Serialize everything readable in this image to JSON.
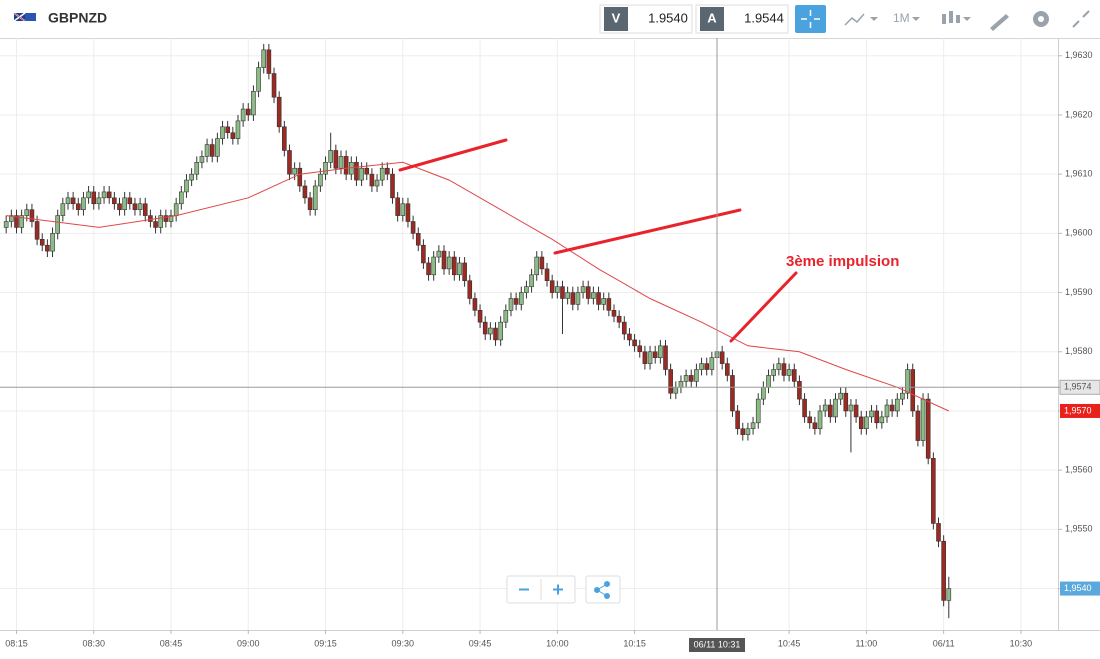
{
  "toolbar": {
    "symbol": "GBPNZD",
    "sell_label": "V",
    "sell_price": "1.9540",
    "buy_label": "A",
    "buy_price": "1.9544",
    "timeframe": "1M"
  },
  "chart_data": {
    "type": "candlestick",
    "x": [
      493,
      494,
      495,
      496,
      497,
      498,
      499,
      500,
      501,
      502,
      503,
      504,
      505,
      506,
      507,
      508,
      509,
      510,
      511,
      512,
      513,
      514,
      515,
      516,
      517,
      518,
      519,
      520,
      521,
      522,
      523,
      524,
      525,
      526,
      527,
      528,
      529,
      530,
      531,
      532,
      533,
      534,
      535,
      536,
      537,
      538,
      539,
      540,
      541,
      542,
      543,
      544,
      545,
      546,
      547,
      548,
      549,
      550,
      551,
      552,
      553,
      554,
      555,
      556,
      557,
      558,
      559,
      560,
      561,
      562,
      563,
      564,
      565,
      566,
      567,
      568,
      569,
      570,
      571,
      572,
      573,
      574,
      575,
      576,
      577,
      578,
      579,
      580,
      581,
      582,
      583,
      584,
      585,
      586,
      587,
      588,
      589,
      590,
      591,
      592,
      593,
      594,
      595,
      596,
      597,
      598,
      599,
      600,
      601,
      602,
      603,
      604,
      605,
      606,
      607,
      608,
      609,
      610,
      611,
      612,
      613,
      614,
      615,
      616,
      617,
      618,
      619,
      620,
      621,
      622,
      623,
      624,
      625,
      626,
      627,
      628,
      629,
      630,
      631,
      632,
      633,
      634,
      635,
      636,
      637,
      638,
      639,
      640,
      641,
      642,
      643,
      644,
      645,
      646,
      647,
      648,
      649,
      650,
      651,
      652,
      653,
      654,
      655,
      656,
      657,
      658,
      659,
      660,
      661,
      662,
      663,
      664,
      665,
      666,
      667,
      668,
      669,
      670,
      671,
      672,
      673,
      674,
      675,
      676
    ],
    "candles": [
      [
        1.9601,
        1.9603,
        1.96,
        1.9602
      ],
      [
        1.9602,
        1.9604,
        1.9601,
        1.9603
      ],
      [
        1.9603,
        1.9604,
        1.96,
        1.9601
      ],
      [
        1.9601,
        1.9604,
        1.96,
        1.9603
      ],
      [
        1.9603,
        1.9605,
        1.9602,
        1.9604
      ],
      [
        1.9604,
        1.9605,
        1.9601,
        1.9602
      ],
      [
        1.9602,
        1.9603,
        1.9598,
        1.9599
      ],
      [
        1.9599,
        1.96,
        1.9597,
        1.9598
      ],
      [
        1.9598,
        1.9599,
        1.9596,
        1.9597
      ],
      [
        1.9597,
        1.9601,
        1.9596,
        1.96
      ],
      [
        1.96,
        1.9604,
        1.9599,
        1.9603
      ],
      [
        1.9603,
        1.9606,
        1.9602,
        1.9605
      ],
      [
        1.9605,
        1.9607,
        1.9604,
        1.9606
      ],
      [
        1.9606,
        1.9607,
        1.9604,
        1.9605
      ],
      [
        1.9605,
        1.9606,
        1.9603,
        1.9604
      ],
      [
        1.9604,
        1.9607,
        1.9603,
        1.9606
      ],
      [
        1.9606,
        1.9608,
        1.9605,
        1.9607
      ],
      [
        1.9607,
        1.9608,
        1.9604,
        1.9605
      ],
      [
        1.9605,
        1.9607,
        1.9604,
        1.9606
      ],
      [
        1.9606,
        1.9608,
        1.9605,
        1.9607
      ],
      [
        1.9607,
        1.9608,
        1.9605,
        1.9606
      ],
      [
        1.9606,
        1.9607,
        1.9604,
        1.9605
      ],
      [
        1.9605,
        1.9606,
        1.9603,
        1.9604
      ],
      [
        1.9604,
        1.9607,
        1.9603,
        1.9606
      ],
      [
        1.9606,
        1.9607,
        1.9604,
        1.9605
      ],
      [
        1.9605,
        1.9606,
        1.9603,
        1.9604
      ],
      [
        1.9604,
        1.9606,
        1.9603,
        1.9605
      ],
      [
        1.9605,
        1.9606,
        1.9602,
        1.9603
      ],
      [
        1.9603,
        1.9604,
        1.9601,
        1.9602
      ],
      [
        1.9602,
        1.9603,
        1.96,
        1.9601
      ],
      [
        1.9601,
        1.9604,
        1.96,
        1.9603
      ],
      [
        1.9603,
        1.9604,
        1.9601,
        1.9602
      ],
      [
        1.9602,
        1.9604,
        1.9601,
        1.9603
      ],
      [
        1.9603,
        1.9606,
        1.9602,
        1.9605
      ],
      [
        1.9605,
        1.9608,
        1.9604,
        1.9607
      ],
      [
        1.9607,
        1.961,
        1.9606,
        1.9609
      ],
      [
        1.9609,
        1.9611,
        1.9608,
        1.961
      ],
      [
        1.961,
        1.9613,
        1.9609,
        1.9612
      ],
      [
        1.9612,
        1.9614,
        1.9611,
        1.9613
      ],
      [
        1.9613,
        1.9616,
        1.9612,
        1.9615
      ],
      [
        1.9615,
        1.9616,
        1.9612,
        1.9613
      ],
      [
        1.9613,
        1.9617,
        1.9612,
        1.9616
      ],
      [
        1.9616,
        1.9619,
        1.9615,
        1.9618
      ],
      [
        1.9618,
        1.9619,
        1.9616,
        1.9617
      ],
      [
        1.9617,
        1.9618,
        1.9615,
        1.9616
      ],
      [
        1.9616,
        1.962,
        1.9615,
        1.9619
      ],
      [
        1.9619,
        1.9622,
        1.9618,
        1.9621
      ],
      [
        1.9621,
        1.9622,
        1.9619,
        1.962
      ],
      [
        1.962,
        1.9625,
        1.9619,
        1.9624
      ],
      [
        1.9624,
        1.9629,
        1.9623,
        1.9628
      ],
      [
        1.9628,
        1.9632,
        1.9627,
        1.9631
      ],
      [
        1.9631,
        1.9632,
        1.9626,
        1.9627
      ],
      [
        1.9627,
        1.9628,
        1.9622,
        1.9623
      ],
      [
        1.9623,
        1.9624,
        1.9617,
        1.9618
      ],
      [
        1.9618,
        1.9619,
        1.9613,
        1.9614
      ],
      [
        1.9614,
        1.9615,
        1.9609,
        1.961
      ],
      [
        1.961,
        1.9612,
        1.9609,
        1.9611
      ],
      [
        1.9611,
        1.9612,
        1.9607,
        1.9608
      ],
      [
        1.9608,
        1.9609,
        1.9605,
        1.9606
      ],
      [
        1.9606,
        1.9607,
        1.9603,
        1.9604
      ],
      [
        1.9604,
        1.9609,
        1.9603,
        1.9608
      ],
      [
        1.9608,
        1.9611,
        1.9607,
        1.961
      ],
      [
        1.961,
        1.9613,
        1.9609,
        1.9612
      ],
      [
        1.9612,
        1.9617,
        1.9611,
        1.9614
      ],
      [
        1.9614,
        1.9615,
        1.961,
        1.9611
      ],
      [
        1.9611,
        1.9614,
        1.961,
        1.9613
      ],
      [
        1.9613,
        1.9614,
        1.9609,
        1.961
      ],
      [
        1.961,
        1.9613,
        1.9609,
        1.9612
      ],
      [
        1.9612,
        1.9613,
        1.9608,
        1.9609
      ],
      [
        1.9609,
        1.9612,
        1.9608,
        1.9611
      ],
      [
        1.9611,
        1.9612,
        1.9609,
        1.961
      ],
      [
        1.961,
        1.9611,
        1.9607,
        1.9608
      ],
      [
        1.9608,
        1.961,
        1.9607,
        1.9609
      ],
      [
        1.9609,
        1.9612,
        1.9608,
        1.9611
      ],
      [
        1.9611,
        1.9612,
        1.9609,
        1.961
      ],
      [
        1.961,
        1.9611,
        1.9605,
        1.9606
      ],
      [
        1.9606,
        1.9607,
        1.9602,
        1.9603
      ],
      [
        1.9603,
        1.9606,
        1.9602,
        1.9605
      ],
      [
        1.9605,
        1.9606,
        1.9601,
        1.9602
      ],
      [
        1.9602,
        1.9603,
        1.9599,
        1.96
      ],
      [
        1.96,
        1.9601,
        1.9597,
        1.9598
      ],
      [
        1.9598,
        1.9599,
        1.9594,
        1.9595
      ],
      [
        1.9595,
        1.9596,
        1.9592,
        1.9593
      ],
      [
        1.9593,
        1.9597,
        1.9592,
        1.9596
      ],
      [
        1.9596,
        1.9598,
        1.9595,
        1.9597
      ],
      [
        1.9597,
        1.9598,
        1.9593,
        1.9594
      ],
      [
        1.9594,
        1.9597,
        1.9593,
        1.9596
      ],
      [
        1.9596,
        1.9597,
        1.9592,
        1.9593
      ],
      [
        1.9593,
        1.9596,
        1.9592,
        1.9595
      ],
      [
        1.9595,
        1.9596,
        1.9591,
        1.9592
      ],
      [
        1.9592,
        1.9593,
        1.9588,
        1.9589
      ],
      [
        1.9589,
        1.959,
        1.9586,
        1.9587
      ],
      [
        1.9587,
        1.9588,
        1.9584,
        1.9585
      ],
      [
        1.9585,
        1.9586,
        1.9582,
        1.9583
      ],
      [
        1.9583,
        1.9585,
        1.9582,
        1.9584
      ],
      [
        1.9584,
        1.9585,
        1.9581,
        1.9582
      ],
      [
        1.9582,
        1.9586,
        1.9581,
        1.9585
      ],
      [
        1.9585,
        1.9588,
        1.9584,
        1.9587
      ],
      [
        1.9587,
        1.959,
        1.9586,
        1.9589
      ],
      [
        1.9589,
        1.959,
        1.9587,
        1.9588
      ],
      [
        1.9588,
        1.9591,
        1.9587,
        1.959
      ],
      [
        1.959,
        1.9592,
        1.9589,
        1.9591
      ],
      [
        1.9591,
        1.9594,
        1.959,
        1.9593
      ],
      [
        1.9593,
        1.9597,
        1.9592,
        1.9596
      ],
      [
        1.9596,
        1.9597,
        1.9593,
        1.9594
      ],
      [
        1.9594,
        1.9595,
        1.9591,
        1.9592
      ],
      [
        1.9592,
        1.9593,
        1.9589,
        1.959
      ],
      [
        1.959,
        1.9592,
        1.9589,
        1.9591
      ],
      [
        1.9591,
        1.9592,
        1.9583,
        1.9589
      ],
      [
        1.9589,
        1.9591,
        1.9588,
        1.959
      ],
      [
        1.959,
        1.9591,
        1.9587,
        1.9588
      ],
      [
        1.9588,
        1.9591,
        1.9587,
        1.959
      ],
      [
        1.959,
        1.9592,
        1.9589,
        1.9591
      ],
      [
        1.9591,
        1.9592,
        1.9588,
        1.9589
      ],
      [
        1.9589,
        1.9591,
        1.9588,
        1.959
      ],
      [
        1.959,
        1.9591,
        1.9587,
        1.9588
      ],
      [
        1.9588,
        1.959,
        1.9587,
        1.9589
      ],
      [
        1.9589,
        1.959,
        1.9586,
        1.9587
      ],
      [
        1.9587,
        1.9588,
        1.9585,
        1.9586
      ],
      [
        1.9586,
        1.9587,
        1.9584,
        1.9585
      ],
      [
        1.9585,
        1.9586,
        1.9582,
        1.9583
      ],
      [
        1.9583,
        1.9584,
        1.9581,
        1.9582
      ],
      [
        1.9582,
        1.9583,
        1.958,
        1.9581
      ],
      [
        1.9581,
        1.9582,
        1.9579,
        1.958
      ],
      [
        1.958,
        1.9581,
        1.9577,
        1.9578
      ],
      [
        1.9578,
        1.9581,
        1.9577,
        1.958
      ],
      [
        1.958,
        1.9581,
        1.9578,
        1.9579
      ],
      [
        1.9579,
        1.9582,
        1.9578,
        1.9581
      ],
      [
        1.9581,
        1.9582,
        1.9576,
        1.9577
      ],
      [
        1.9577,
        1.9578,
        1.9572,
        1.9573
      ],
      [
        1.9573,
        1.9575,
        1.9572,
        1.9574
      ],
      [
        1.9574,
        1.9576,
        1.9573,
        1.9575
      ],
      [
        1.9575,
        1.9577,
        1.9574,
        1.9576
      ],
      [
        1.9576,
        1.9577,
        1.9574,
        1.9575
      ],
      [
        1.9575,
        1.9578,
        1.9574,
        1.9577
      ],
      [
        1.9577,
        1.9579,
        1.9576,
        1.9578
      ],
      [
        1.9578,
        1.9579,
        1.9576,
        1.9577
      ],
      [
        1.9577,
        1.958,
        1.9576,
        1.9579
      ],
      [
        1.9579,
        1.9581,
        1.9578,
        1.958
      ],
      [
        1.958,
        1.9581,
        1.9577,
        1.9578
      ],
      [
        1.9578,
        1.9579,
        1.9575,
        1.9576
      ],
      [
        1.9576,
        1.9577,
        1.9569,
        1.957
      ],
      [
        1.957,
        1.9571,
        1.9566,
        1.9567
      ],
      [
        1.9567,
        1.9568,
        1.9565,
        1.9566
      ],
      [
        1.9566,
        1.9568,
        1.9565,
        1.9567
      ],
      [
        1.9567,
        1.9569,
        1.9566,
        1.9568
      ],
      [
        1.9568,
        1.9573,
        1.9567,
        1.9572
      ],
      [
        1.9572,
        1.9575,
        1.9571,
        1.9574
      ],
      [
        1.9574,
        1.9577,
        1.9573,
        1.9576
      ],
      [
        1.9576,
        1.9578,
        1.9575,
        1.9577
      ],
      [
        1.9577,
        1.9579,
        1.9576,
        1.9578
      ],
      [
        1.9578,
        1.9579,
        1.9575,
        1.9576
      ],
      [
        1.9576,
        1.9578,
        1.9575,
        1.9577
      ],
      [
        1.9577,
        1.9578,
        1.9574,
        1.9575
      ],
      [
        1.9575,
        1.9576,
        1.9571,
        1.9572
      ],
      [
        1.9572,
        1.9573,
        1.9568,
        1.9569
      ],
      [
        1.9569,
        1.957,
        1.9567,
        1.9568
      ],
      [
        1.9568,
        1.9569,
        1.9566,
        1.9567
      ],
      [
        1.9567,
        1.9571,
        1.9566,
        1.957
      ],
      [
        1.957,
        1.9572,
        1.9569,
        1.9571
      ],
      [
        1.9571,
        1.9572,
        1.9568,
        1.9569
      ],
      [
        1.9569,
        1.9573,
        1.9568,
        1.9572
      ],
      [
        1.9572,
        1.9574,
        1.9571,
        1.9573
      ],
      [
        1.9573,
        1.9574,
        1.9569,
        1.957
      ],
      [
        1.957,
        1.9572,
        1.9563,
        1.9571
      ],
      [
        1.9571,
        1.9572,
        1.9568,
        1.9569
      ],
      [
        1.9569,
        1.957,
        1.9566,
        1.9567
      ],
      [
        1.9567,
        1.957,
        1.9566,
        1.9569
      ],
      [
        1.9569,
        1.9571,
        1.9568,
        1.957
      ],
      [
        1.957,
        1.9571,
        1.9567,
        1.9568
      ],
      [
        1.9568,
        1.957,
        1.9567,
        1.9569
      ],
      [
        1.9569,
        1.9572,
        1.9568,
        1.9571
      ],
      [
        1.9571,
        1.9572,
        1.9569,
        1.957
      ],
      [
        1.957,
        1.9573,
        1.9569,
        1.9572
      ],
      [
        1.9572,
        1.9574,
        1.9571,
        1.9573
      ],
      [
        1.9573,
        1.9578,
        1.9572,
        1.9577
      ],
      [
        1.9577,
        1.9578,
        1.9569,
        1.957
      ],
      [
        1.957,
        1.9571,
        1.9564,
        1.9565
      ],
      [
        1.9565,
        1.9573,
        1.9564,
        1.9572
      ],
      [
        1.9572,
        1.9573,
        1.9561,
        1.9562
      ],
      [
        1.9562,
        1.9563,
        1.955,
        1.9551
      ],
      [
        1.9551,
        1.9552,
        1.9547,
        1.9548
      ],
      [
        1.9548,
        1.9549,
        1.9537,
        1.9538
      ],
      [
        1.9538,
        1.9542,
        1.9535,
        1.954
      ]
    ],
    "up_color": "#8dbb86",
    "down_color": "#9a2a22",
    "moving_average": {
      "color": "#e0464a",
      "x": [
        493,
        511,
        526,
        540,
        550,
        559,
        570,
        579,
        589,
        599,
        608,
        618,
        628,
        637,
        647,
        656,
        666,
        676
      ],
      "values": [
        1.9603,
        1.9601,
        1.9603,
        1.9606,
        1.961,
        1.9611,
        1.9612,
        1.9609,
        1.9604,
        1.9599,
        1.9594,
        1.9589,
        1.9585,
        1.9581,
        1.958,
        1.9577,
        1.9574,
        1.957
      ]
    },
    "xlim": [
      491.8,
      697.2
    ],
    "xticks": [
      {
        "value": 495,
        "label": "08:15"
      },
      {
        "value": 510,
        "label": "08:30"
      },
      {
        "value": 525,
        "label": "08:45"
      },
      {
        "value": 540,
        "label": "09:00"
      },
      {
        "value": 555,
        "label": "09:15"
      },
      {
        "value": 570,
        "label": "09:30"
      },
      {
        "value": 585,
        "label": "09:45"
      },
      {
        "value": 600,
        "label": "10:00"
      },
      {
        "value": 615,
        "label": "10:15"
      },
      {
        "value": 645,
        "label": "10:45"
      },
      {
        "value": 660,
        "label": "11:00"
      },
      {
        "value": 675,
        "label": "06/11"
      },
      {
        "value": 690,
        "label": "10:30"
      }
    ],
    "ylim": [
      1.9533,
      1.9633
    ],
    "yticks": [
      {
        "value": 1.963,
        "label": "1,9630"
      },
      {
        "value": 1.962,
        "label": "1,9620"
      },
      {
        "value": 1.961,
        "label": "1,9610"
      },
      {
        "value": 1.96,
        "label": "1,9600"
      },
      {
        "value": 1.959,
        "label": "1,9590"
      },
      {
        "value": 1.958,
        "label": "1,9580"
      },
      {
        "value": 1.957,
        "label": "1,9570"
      },
      {
        "value": 1.956,
        "label": "1,9560"
      },
      {
        "value": 1.955,
        "label": "1,9550"
      },
      {
        "value": 1.954,
        "label": "1,9540"
      }
    ],
    "grid": true,
    "crosshair": {
      "x": {
        "value": 631,
        "label": "06/11 10:31"
      },
      "y": {
        "value": 1.9574,
        "label": "1,9574"
      }
    },
    "price_labels": [
      {
        "value": 1.957,
        "label": "1,9570",
        "color": "#e8211b"
      },
      {
        "value": 1.954,
        "label": "1,9540",
        "color": "#5aa8dc"
      }
    ],
    "annotation": "3ème impulsion"
  }
}
